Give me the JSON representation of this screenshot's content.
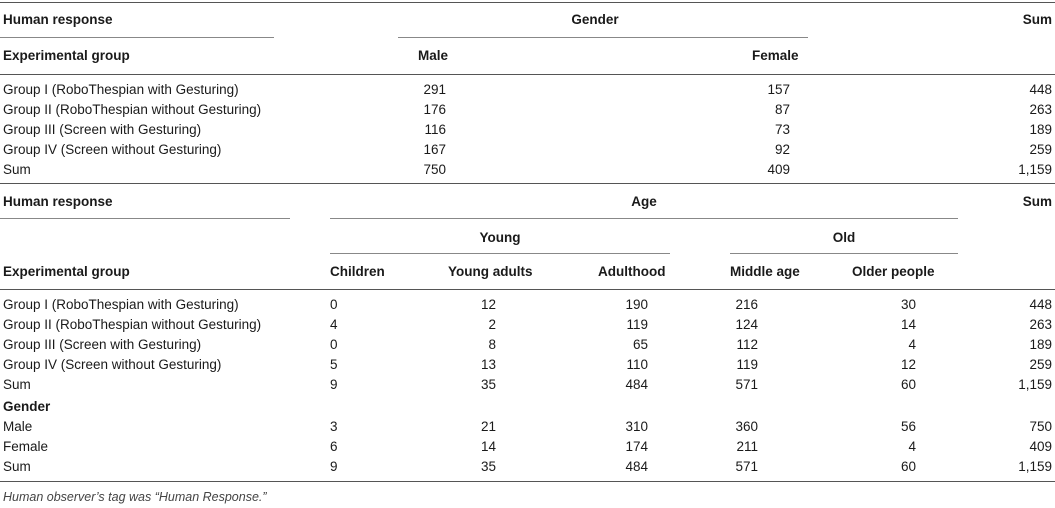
{
  "t1": {
    "human_response": "Human response",
    "gender": "Gender",
    "sum": "Sum",
    "experimental_group": "Experimental group",
    "male": "Male",
    "female": "Female",
    "rows": [
      {
        "label": "Group I (RoboThespian with Gesturing)",
        "male": "291",
        "female": "157",
        "sum": "448"
      },
      {
        "label": "Group II (RoboThespian without Gesturing)",
        "male": "176",
        "female": "87",
        "sum": "263"
      },
      {
        "label": "Group III (Screen with Gesturing)",
        "male": "116",
        "female": "73",
        "sum": "189"
      },
      {
        "label": "Group IV (Screen without Gesturing)",
        "male": "167",
        "female": "92",
        "sum": "259"
      },
      {
        "label": "Sum",
        "male": "750",
        "female": "409",
        "sum": "1,159"
      }
    ]
  },
  "t2": {
    "human_response": "Human response",
    "age": "Age",
    "sum": "Sum",
    "young": "Young",
    "old": "Old",
    "experimental_group": "Experimental group",
    "cols": [
      "Children",
      "Young adults",
      "Adulthood",
      "Middle age",
      "Older people"
    ],
    "rows": [
      {
        "label": "Group I (RoboThespian with Gesturing)",
        "v": [
          "0",
          "12",
          "190",
          "216",
          "30"
        ],
        "sum": "448"
      },
      {
        "label": "Group II (RoboThespian without Gesturing)",
        "v": [
          "4",
          "2",
          "119",
          "124",
          "14"
        ],
        "sum": "263"
      },
      {
        "label": "Group III (Screen with Gesturing)",
        "v": [
          "0",
          "8",
          "65",
          "112",
          "4"
        ],
        "sum": "189"
      },
      {
        "label": "Group IV (Screen without Gesturing)",
        "v": [
          "5",
          "13",
          "110",
          "119",
          "12"
        ],
        "sum": "259"
      },
      {
        "label": "Sum",
        "v": [
          "9",
          "35",
          "484",
          "571",
          "60"
        ],
        "sum": "1,159"
      }
    ],
    "gender_heading": "Gender",
    "gender_rows": [
      {
        "label": "Male",
        "v": [
          "3",
          "21",
          "310",
          "360",
          "56"
        ],
        "sum": "750"
      },
      {
        "label": "Female",
        "v": [
          "6",
          "14",
          "174",
          "211",
          "4"
        ],
        "sum": "409"
      },
      {
        "label": "Sum",
        "v": [
          "9",
          "35",
          "484",
          "571",
          "60"
        ],
        "sum": "1,159"
      }
    ]
  },
  "footnote": "Human observer’s tag was “Human Response.”"
}
